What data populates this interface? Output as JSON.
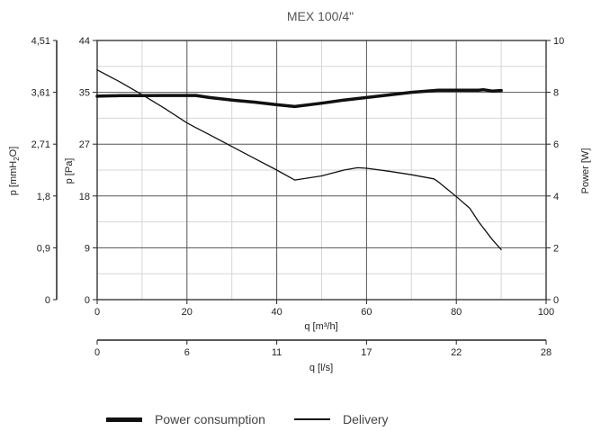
{
  "chart_data": {
    "type": "line",
    "title": "MEX 100/4\"",
    "x_primary": {
      "label": "q [m³/h]",
      "ticks": [
        "0",
        "20",
        "40",
        "60",
        "80",
        "100"
      ],
      "range": [
        0,
        100
      ]
    },
    "x_secondary": {
      "label": "q [l/s]",
      "ticks": [
        "0",
        "6",
        "11",
        "17",
        "22",
        "28"
      ]
    },
    "y_left_outer": {
      "label": "p [mmH₂O]",
      "label_main": "p [mmH",
      "label_sub": "2",
      "label_end": "O]",
      "ticks": [
        "0",
        "0,9",
        "1,8",
        "2,71",
        "3,61",
        "4,51"
      ]
    },
    "y_left_inner": {
      "label": "p [Pa]",
      "ticks": [
        "0",
        "9",
        "18",
        "27",
        "35",
        "44"
      ],
      "range": [
        0,
        44
      ]
    },
    "y_right": {
      "label": "Power [W]",
      "ticks": [
        "0",
        "2",
        "4",
        "6",
        "8",
        "10"
      ],
      "range": [
        0,
        10
      ]
    },
    "grid": true,
    "legend_position": "bottom",
    "series": [
      {
        "name": "Power consumption",
        "axis": "right",
        "style": "thick",
        "x": [
          0,
          5,
          10,
          15,
          20,
          22,
          25,
          30,
          35,
          40,
          44,
          50,
          55,
          60,
          65,
          70,
          76,
          80,
          85,
          86,
          88,
          90
        ],
        "y": [
          7.85,
          7.87,
          7.87,
          7.88,
          7.88,
          7.88,
          7.8,
          7.7,
          7.62,
          7.52,
          7.45,
          7.58,
          7.7,
          7.8,
          7.9,
          8.0,
          8.08,
          8.08,
          8.08,
          8.1,
          8.05,
          8.07
        ]
      },
      {
        "name": "Delivery",
        "axis": "left_pa",
        "style": "thin",
        "x": [
          0,
          5,
          10,
          15,
          20,
          22,
          25,
          30,
          35,
          40,
          44,
          50,
          55,
          58,
          60,
          65,
          70,
          75,
          76,
          80,
          83,
          85,
          87,
          88,
          90
        ],
        "y": [
          39.0,
          37.0,
          34.8,
          32.5,
          30.0,
          29.2,
          28.0,
          26.0,
          24.0,
          22.0,
          20.3,
          21.0,
          22.0,
          22.4,
          22.3,
          21.8,
          21.2,
          20.5,
          20.0,
          17.5,
          15.5,
          13.2,
          11.2,
          10.2,
          8.5
        ]
      }
    ]
  }
}
